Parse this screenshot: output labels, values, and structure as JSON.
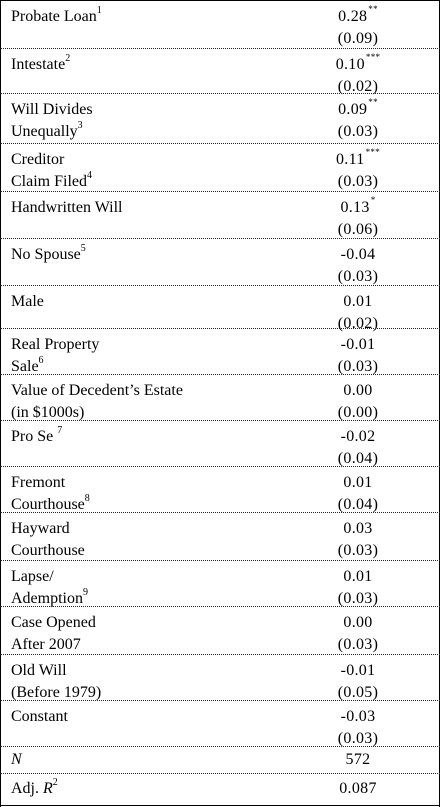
{
  "rows": [
    {
      "l1": "Probate Loan",
      "l1sup": "1",
      "l2": "",
      "l2sup": "",
      "coef": "0.28",
      "stars": "**",
      "se": "(0.09)"
    },
    {
      "l1": "Intestate",
      "l1sup": "2",
      "l2": "",
      "l2sup": "",
      "coef": "0.10",
      "stars": "***",
      "se": "(0.02)"
    },
    {
      "l1": "Will Divides",
      "l1sup": "",
      "l2": "Unequally",
      "l2sup": "3",
      "coef": "0.09",
      "stars": "**",
      "se": "(0.03)"
    },
    {
      "l1": "Creditor",
      "l1sup": "",
      "l2": "Claim Filed",
      "l2sup": "4",
      "coef": "0.11",
      "stars": "***",
      "se": "(0.03)"
    },
    {
      "l1": "Handwritten Will",
      "l1sup": "",
      "l2": "",
      "l2sup": "",
      "coef": "0.13",
      "stars": "*",
      "se": "(0.06)"
    },
    {
      "l1": "No Spouse",
      "l1sup": "5",
      "l2": "",
      "l2sup": "",
      "coef": "-0.04",
      "stars": "",
      "se": "(0.03)"
    },
    {
      "l1": "Male",
      "l1sup": "",
      "l2": "",
      "l2sup": "",
      "coef": "0.01",
      "stars": "",
      "se": "(0.02)"
    },
    {
      "l1": "Real Property",
      "l1sup": "",
      "l2": "Sale",
      "l2sup": "6",
      "coef": "-0.01",
      "stars": "",
      "se": "(0.03)"
    },
    {
      "l1": "Value of Decedent’s Estate",
      "l1sup": "",
      "l2": "(in $1000s)",
      "l2sup": "",
      "coef": "0.00",
      "stars": "",
      "se": "(0.00)"
    },
    {
      "l1": "Pro Se ",
      "l1sup": "7",
      "l2": "",
      "l2sup": "",
      "coef": "-0.02",
      "stars": "",
      "se": "(0.04)"
    },
    {
      "l1": "Fremont",
      "l1sup": "",
      "l2": "Courthouse",
      "l2sup": "8",
      "coef": "0.01",
      "stars": "",
      "se": "(0.04)"
    },
    {
      "l1": "Hayward",
      "l1sup": "",
      "l2": "Courthouse",
      "l2sup": "",
      "coef": "0.03",
      "stars": "",
      "se": "(0.03)"
    },
    {
      "l1": "Lapse/",
      "l1sup": "",
      "l2": "Ademption",
      "l2sup": "9",
      "coef": "0.01",
      "stars": "",
      "se": "(0.03)"
    },
    {
      "l1": "Case Opened",
      "l1sup": "",
      "l2": "After 2007",
      "l2sup": "",
      "coef": "0.00",
      "stars": "",
      "se": "(0.03)"
    },
    {
      "l1": "Old Will",
      "l1sup": "",
      "l2": "(Before 1979)",
      "l2sup": "",
      "coef": "-0.01",
      "stars": "",
      "se": "(0.05)"
    },
    {
      "l1": "Constant",
      "l1sup": "",
      "l2": "",
      "l2sup": "",
      "coef": "-0.03",
      "stars": "",
      "se": "(0.03)"
    }
  ],
  "n_row": {
    "label": "N",
    "value": "572"
  },
  "r2_row": {
    "label_prefix": "Adj. ",
    "label_var": "R",
    "label_sup": "2",
    "value": "0.087"
  }
}
